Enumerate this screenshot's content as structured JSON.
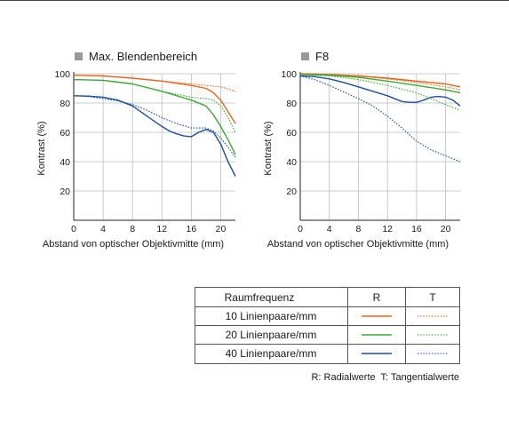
{
  "chart_data": [
    {
      "type": "line",
      "title": "Max. Blendenbereich",
      "xlabel": "Abstand von optischer Objektivmitte (mm)",
      "ylabel": "Kontrast (%)",
      "xlim": [
        0,
        22
      ],
      "ylim": [
        0,
        100
      ],
      "xticks": [
        "0",
        "4",
        "8",
        "12",
        "16",
        "20"
      ],
      "yticks": [
        "20",
        "40",
        "60",
        "80",
        "100"
      ],
      "grid": true,
      "series": [
        {
          "freq": "10",
          "kind": "R",
          "color": "#e8641e",
          "dash": false,
          "x": [
            0,
            4,
            8,
            12,
            16,
            18,
            19,
            20,
            21,
            22
          ],
          "y": [
            99,
            98.5,
            97,
            95,
            92,
            90,
            87,
            82,
            74,
            66
          ]
        },
        {
          "freq": "10",
          "kind": "T",
          "color": "#e8641e",
          "dash": true,
          "x": [
            0,
            4,
            8,
            12,
            16,
            18,
            20,
            22
          ],
          "y": [
            99,
            98.5,
            97,
            95,
            93,
            92,
            91,
            88
          ]
        },
        {
          "freq": "20",
          "kind": "R",
          "color": "#3aaa35",
          "dash": false,
          "x": [
            0,
            4,
            8,
            12,
            16,
            18,
            19,
            20,
            21,
            22
          ],
          "y": [
            96,
            95.5,
            93,
            88,
            82,
            78,
            72,
            64,
            55,
            45
          ]
        },
        {
          "freq": "20",
          "kind": "T",
          "color": "#3aaa35",
          "dash": true,
          "x": [
            0,
            4,
            8,
            12,
            16,
            18,
            19,
            20,
            21,
            22
          ],
          "y": [
            96,
            95.5,
            93,
            88,
            84,
            83,
            82,
            78,
            70,
            60
          ]
        },
        {
          "freq": "40",
          "kind": "R",
          "color": "#1f4e9c",
          "dash": false,
          "x": [
            0,
            2,
            4,
            6,
            8,
            10,
            12,
            13,
            14,
            15,
            16,
            17,
            18,
            19,
            20,
            21,
            22
          ],
          "y": [
            85,
            84.7,
            84,
            82,
            78,
            71,
            64,
            61,
            59,
            57.5,
            57,
            60,
            62,
            60,
            52,
            40,
            30
          ]
        },
        {
          "freq": "40",
          "kind": "T",
          "color": "#1f4e9c",
          "dash": true,
          "x": [
            0,
            2,
            4,
            6,
            8,
            10,
            12,
            14,
            16,
            18,
            19,
            20,
            21,
            22
          ],
          "y": [
            85,
            84.5,
            83,
            81.5,
            79,
            75,
            70,
            66,
            63,
            63,
            61,
            56,
            50,
            43
          ]
        }
      ]
    },
    {
      "type": "line",
      "title": "F8",
      "xlabel": "Abstand von optischer Objektivmitte (mm)",
      "ylabel": "Kontrast (%)",
      "xlim": [
        0,
        22
      ],
      "ylim": [
        0,
        100
      ],
      "xticks": [
        "0",
        "4",
        "8",
        "12",
        "16",
        "20"
      ],
      "yticks": [
        "20",
        "40",
        "60",
        "80",
        "100"
      ],
      "grid": true,
      "series": [
        {
          "freq": "10",
          "kind": "R",
          "color": "#e8641e",
          "dash": false,
          "x": [
            0,
            4,
            8,
            12,
            16,
            20,
            22
          ],
          "y": [
            100,
            99.5,
            98.5,
            97,
            95,
            93,
            91
          ]
        },
        {
          "freq": "10",
          "kind": "T",
          "color": "#e8641e",
          "dash": true,
          "x": [
            0,
            4,
            8,
            12,
            16,
            20,
            22
          ],
          "y": [
            100,
            99.5,
            98.5,
            96.5,
            94,
            91,
            89
          ]
        },
        {
          "freq": "20",
          "kind": "R",
          "color": "#3aaa35",
          "dash": false,
          "x": [
            0,
            4,
            8,
            12,
            16,
            20,
            22
          ],
          "y": [
            99.5,
            99,
            97.5,
            95,
            92,
            89,
            87
          ]
        },
        {
          "freq": "20",
          "kind": "T",
          "color": "#3aaa35",
          "dash": true,
          "x": [
            0,
            4,
            8,
            12,
            16,
            18,
            20,
            22
          ],
          "y": [
            99.5,
            98.5,
            96,
            92,
            87,
            83,
            79,
            75
          ]
        },
        {
          "freq": "40",
          "kind": "R",
          "color": "#1f4e9c",
          "dash": false,
          "x": [
            0,
            2,
            4,
            6,
            8,
            10,
            12,
            14,
            15,
            16,
            17,
            18,
            19,
            20,
            21,
            22
          ],
          "y": [
            98.5,
            98,
            96.5,
            94,
            91,
            88,
            85,
            81,
            80.5,
            80.5,
            82,
            84,
            84.5,
            84,
            82,
            78
          ]
        },
        {
          "freq": "40",
          "kind": "T",
          "color": "#1f4e9c",
          "dash": true,
          "x": [
            0,
            2,
            4,
            6,
            8,
            10,
            12,
            14,
            16,
            18,
            20,
            22
          ],
          "y": [
            98.5,
            96,
            92,
            87.5,
            83,
            78,
            71,
            63,
            54,
            48,
            44,
            40
          ]
        }
      ]
    }
  ],
  "legend": {
    "header": "Raumfrequenz",
    "col_r": "R",
    "col_t": "T",
    "rows": [
      {
        "label": "10 Linienpaare/mm",
        "color": "#e8641e"
      },
      {
        "label": "20 Linienpaare/mm",
        "color": "#3aaa35"
      },
      {
        "label": "40 Linienpaare/mm",
        "color": "#1f4e9c"
      }
    ]
  },
  "note": "R: Radialwerte  T: Tangentialwerte"
}
